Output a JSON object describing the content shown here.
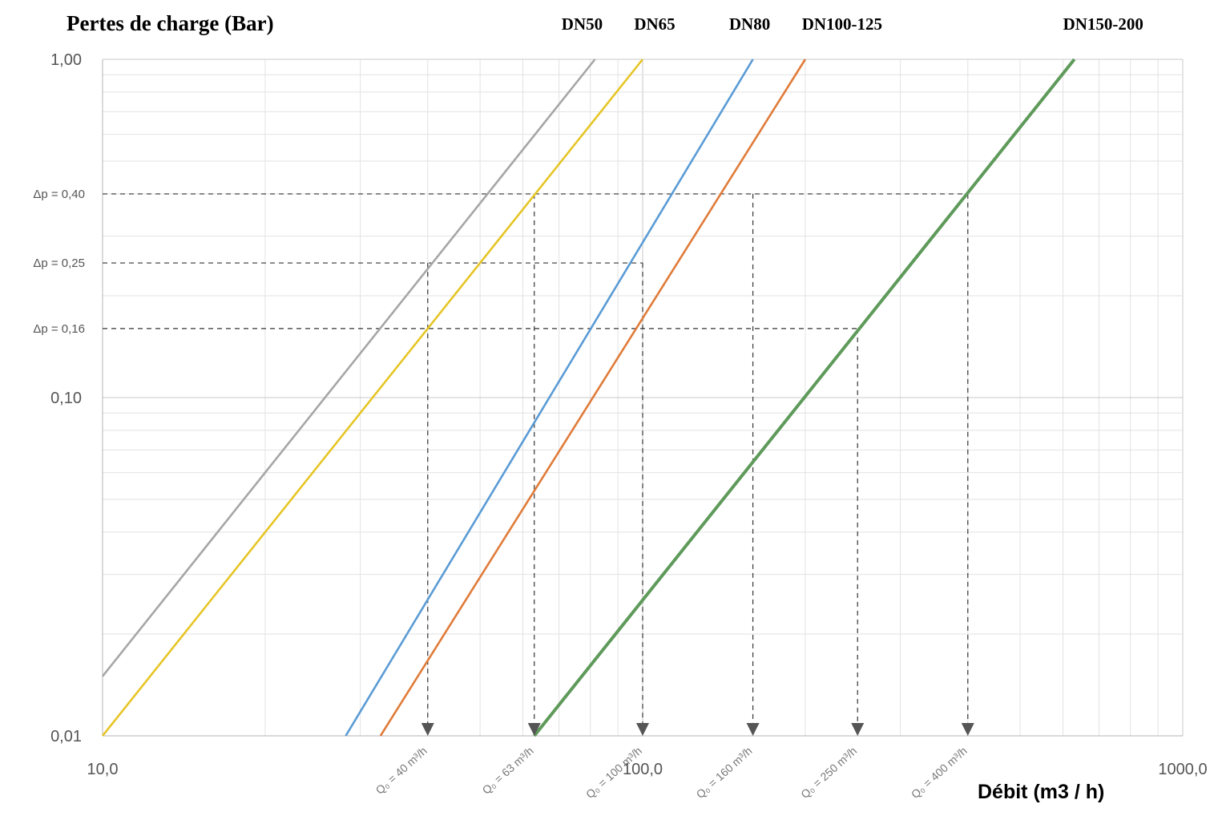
{
  "chart_data": {
    "type": "line",
    "title": "Pertes de charge (Bar)",
    "xlabel": "Débit (m3 / h)",
    "ylabel": "",
    "x_scale": "log",
    "y_scale": "log",
    "xlim": [
      10,
      1000
    ],
    "ylim": [
      0.01,
      1
    ],
    "grid": true,
    "x_ticks": [
      {
        "value": 10,
        "label": "10,0"
      },
      {
        "value": 100,
        "label": "100,0"
      },
      {
        "value": 1000,
        "label": "1000,0"
      }
    ],
    "y_ticks": [
      {
        "value": 1,
        "label": "1,00"
      },
      {
        "value": 0.1,
        "label": "0,10"
      },
      {
        "value": 0.01,
        "label": "0,01"
      }
    ],
    "series": [
      {
        "name": "DN50",
        "color": "#a6a6a6",
        "x": [
          10,
          81.6
        ],
        "y": [
          0.015,
          1
        ]
      },
      {
        "name": "DN65",
        "color": "#e6c525",
        "x": [
          10,
          100
        ],
        "y": [
          0.01,
          1
        ]
      },
      {
        "name": "DN80",
        "color": "#5a9bd5",
        "x": [
          28.2,
          160
        ],
        "y": [
          0.01,
          1
        ]
      },
      {
        "name": "DN100-125",
        "color": "#e07b39",
        "x": [
          32.7,
          200
        ],
        "y": [
          0.01,
          1
        ]
      },
      {
        "name": "DN150-200",
        "color": "#5e9a5a",
        "x": [
          63,
          630
        ],
        "y": [
          0.01,
          1
        ]
      }
    ],
    "reference_lines": {
      "pressure": [
        {
          "label": "Δp = 0,40",
          "value": 0.4,
          "x_end": 400
        },
        {
          "label": "Δp = 0,25",
          "value": 0.25,
          "x_end": 100
        },
        {
          "label": "Δp = 0,16",
          "value": 0.16,
          "x_end": 250
        }
      ],
      "flow": [
        {
          "label": "Q₀ = 40 m³/h",
          "value": 40,
          "y_top": 0.25
        },
        {
          "label": "Q₀ = 63 m³/h",
          "value": 63,
          "y_top": 0.4
        },
        {
          "label": "Q₀ = 100 m³/h",
          "value": 100,
          "y_top": 0.25
        },
        {
          "label": "Q₀ = 160 m³/h",
          "value": 160,
          "y_top": 0.4
        },
        {
          "label": "Q₀ = 250 m³/h",
          "value": 250,
          "y_top": 0.16
        },
        {
          "label": "Q₀ = 400 m³/h",
          "value": 400,
          "y_top": 0.4
        }
      ]
    }
  }
}
